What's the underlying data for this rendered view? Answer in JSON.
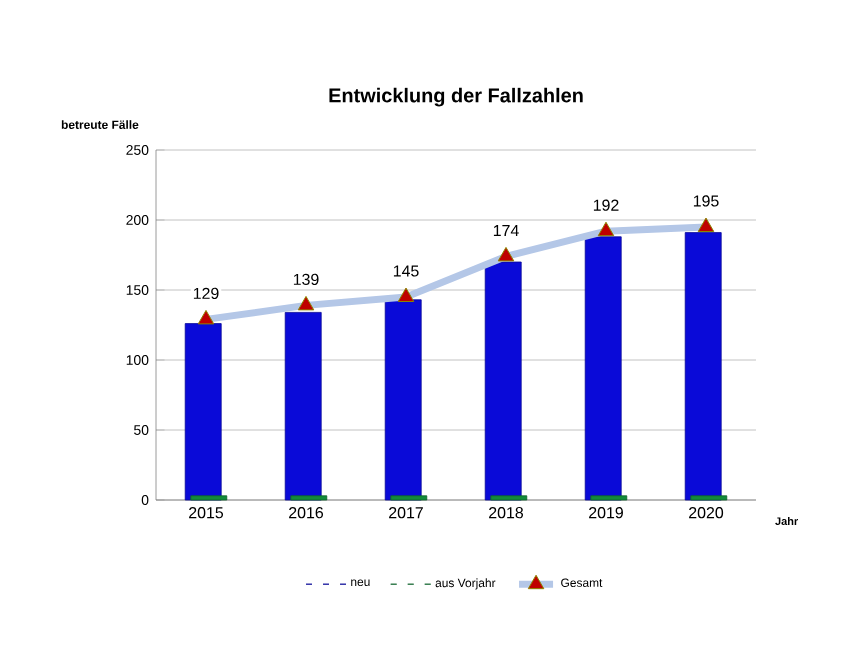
{
  "chart_data": {
    "type": "bar",
    "title": "Entwicklung der Fallzahlen",
    "ylabel": "betreute Fälle",
    "xlabel": "Jahr",
    "categories": [
      "2015",
      "2016",
      "2017",
      "2018",
      "2019",
      "2020"
    ],
    "series": [
      {
        "name": "neu",
        "color": "#0a0ad8",
        "values": [
          126,
          134,
          143,
          170,
          188,
          191
        ]
      },
      {
        "name": "aus Vorjahr",
        "color": "#138a3a",
        "values": [
          3,
          3,
          3,
          3,
          3,
          3
        ]
      },
      {
        "name": "Gesamt",
        "type": "line",
        "color": "#b4c7e7",
        "marker": "triangle",
        "data_labels": true,
        "values": [
          129,
          139,
          145,
          174,
          192,
          195
        ]
      }
    ],
    "ylim": [
      0,
      250
    ],
    "yticks": [
      0,
      50,
      100,
      150,
      200,
      250
    ],
    "grid": "y",
    "legend": "bottom"
  }
}
